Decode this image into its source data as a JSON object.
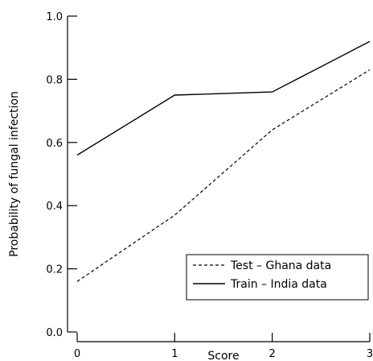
{
  "chart_data": {
    "type": "line",
    "x": [
      0,
      1,
      2,
      3
    ],
    "series": [
      {
        "name": "Test – Ghana data",
        "values": [
          0.16,
          0.37,
          0.64,
          0.83
        ],
        "style": "dashed",
        "color": "#000000"
      },
      {
        "name": "Train – India data",
        "values": [
          0.56,
          0.75,
          0.76,
          0.92
        ],
        "style": "solid",
        "color": "#000000"
      }
    ],
    "xlabel": "Score",
    "ylabel": "Probability of fungal infection",
    "xlim": [
      0,
      3
    ],
    "ylim": [
      0.0,
      1.0
    ],
    "xticks": [
      0,
      1,
      2,
      3
    ],
    "yticks": [
      0.0,
      0.2,
      0.4,
      0.6,
      0.8,
      1.0
    ],
    "xtick_labels": [
      "0",
      "1",
      "2",
      "3"
    ],
    "ytick_labels": [
      "0.0",
      "0.2",
      "0.4",
      "0.6",
      "0.8",
      "1.0"
    ],
    "grid": false,
    "legend_position": "bottom-right"
  }
}
